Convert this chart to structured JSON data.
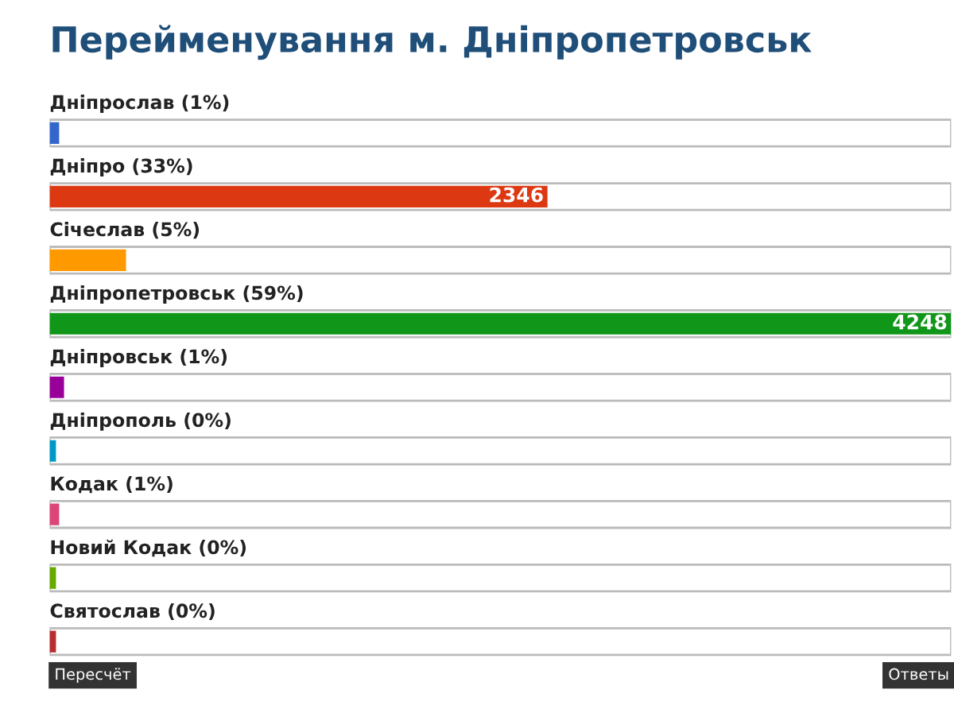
{
  "chart_data": {
    "type": "bar",
    "orientation": "horizontal",
    "title": "Перейменування м. Дніпропетровськ",
    "categories": [
      "Дніпрослав (1%)",
      "Дніпро (33%)",
      "Січеслав (5%)",
      "Дніпропетровськ (59%)",
      "Дніпровськ (1%)",
      "Дніпрополь (0%)",
      "Кодак (1%)",
      "Новий Кодак (0%)",
      "Святослав (0%)"
    ],
    "values": [
      45,
      2346,
      360,
      4248,
      68,
      30,
      45,
      30,
      30
    ],
    "colors": [
      "#3366cc",
      "#dc3912",
      "#ff9900",
      "#109618",
      "#990099",
      "#0099c6",
      "#dd4477",
      "#66aa00",
      "#b82e2e"
    ],
    "value_labels": [
      null,
      "2346",
      null,
      "4248",
      null,
      null,
      null,
      null,
      null
    ],
    "annotations": [
      "Пересчёт",
      "Ответы"
    ]
  }
}
